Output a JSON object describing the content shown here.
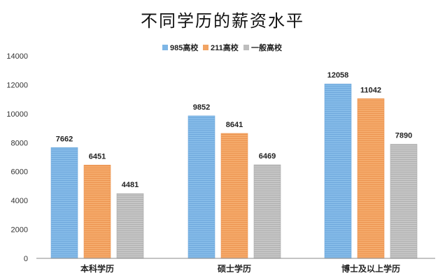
{
  "colors": {
    "series_985": "#7eb6e6",
    "series_211": "#f2a464",
    "series_general": "#bdbdbd",
    "axis": "#888888",
    "grid": "#e6e6e6"
  },
  "chart_data": {
    "type": "bar",
    "title": "不同学历的薪资水平",
    "xlabel": "",
    "ylabel": "",
    "categories": [
      "本科学历",
      "硕士学历",
      "博士及以上学历"
    ],
    "series": [
      {
        "name": "985高校",
        "values": [
          7662,
          9852,
          12058
        ],
        "color": "#7eb6e6"
      },
      {
        "name": "211高校",
        "values": [
          6451,
          8641,
          11042
        ],
        "color": "#f2a464"
      },
      {
        "name": "一般高校",
        "values": [
          4481,
          6469,
          7890
        ],
        "color": "#bdbdbd"
      }
    ],
    "ylim": [
      0,
      14000
    ],
    "yticks": [
      "0",
      "2000",
      "4000",
      "6000",
      "8000",
      "10000",
      "12000",
      "14000"
    ],
    "data_labels": [
      [
        "7662",
        "9852",
        "12058"
      ],
      [
        "6451",
        "8641",
        "11042"
      ],
      [
        "4481",
        "6469",
        "7890"
      ]
    ],
    "legend_position": "top-center",
    "grid": false
  }
}
